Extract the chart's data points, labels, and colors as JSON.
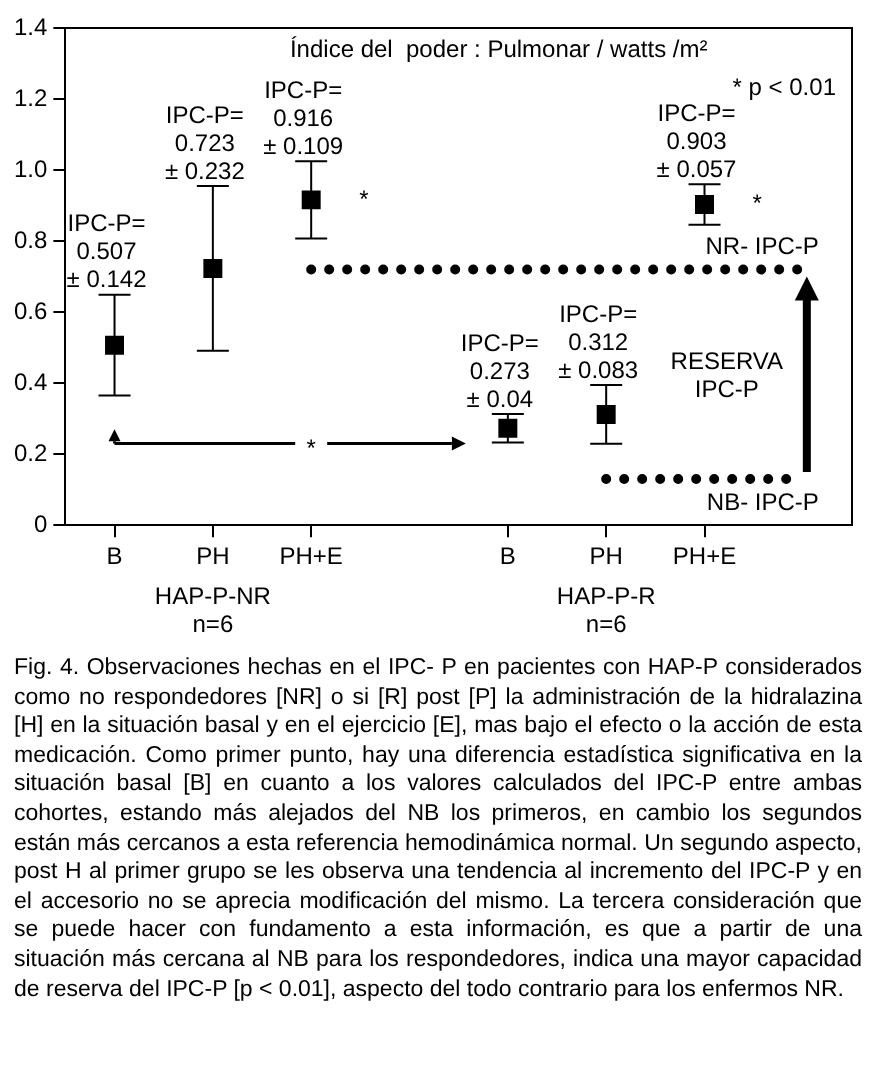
{
  "chart_data": {
    "type": "scatter",
    "title": "Índice del  poder : Pulmonar / watts /m²",
    "categories": [
      "B",
      "PH",
      "PH+E",
      null,
      "B",
      "PH",
      "PH+E",
      null
    ],
    "ylim": [
      0,
      1.4
    ],
    "yticks": [
      0,
      0.2,
      0.4,
      0.6,
      0.8,
      {
        "value": 1,
        "label": "1.0"
      },
      1.2,
      1.4
    ],
    "grid": false,
    "legend": false,
    "series": [
      {
        "color": "#000000",
        "marker": "square",
        "values": [
          0.507,
          0.723,
          0.916,
          null,
          0.273,
          0.312,
          0.903,
          null
        ],
        "errors": [
          0.142,
          0.232,
          0.109,
          null,
          0.04,
          0.083,
          0.057,
          null
        ],
        "value_labels": [
          "IPC-P=\n0.507\n± 0.142",
          "IPC-P=\n0.723\n± 0.232",
          "IPC-P=\n0.916\n± 0.109",
          null,
          "IPC-P=\n0.273\n± 0.04",
          "IPC-P=\n0.312\n± 0.083",
          "IPC-P=\n0.903\n± 0.057",
          null
        ]
      },
      {
        "type": "line",
        "name": "NR- IPC-P",
        "color": "#000000",
        "line_style": "dotted",
        "values": [
          null,
          null,
          0.72,
          0.72,
          0.72,
          0.72,
          0.72,
          0.72
        ]
      },
      {
        "type": "line",
        "name": "NB- IPC-P",
        "color": "#000000",
        "line_style": "dotted",
        "values": [
          null,
          null,
          null,
          null,
          null,
          0.13,
          0.13,
          0.13
        ]
      }
    ],
    "annotations": [
      "* p < 0.01",
      "*",
      "*",
      "*",
      "RESERVA\nIPC-P",
      "HAP-P-NR\nn=6",
      "HAP-P-R\nn=6",
      "Fig. 4. Observaciones hechas en el IPC- P en pacientes con HAP-P considerados como no respondedores [NR] o si [R] post [P] la administración de la hidralazina [H] en la situación basal y en el ejercicio [E], mas bajo el efecto o la acción de esta medicación. Como primer punto, hay una diferencia estadística significativa en la situación basal [B] en cuanto a los valores calculados del IPC-P entre ambas cohortes, estando más alejados del NB los primeros, en cambio los segundos están más cercanos a esta referencia hemodinámica normal. Un segundo aspecto, post H al primer grupo se les observa una tendencia al incremento del IPC-P y en el accesorio no se aprecia modificación del mismo. La tercera consideración que se puede hacer con fundamento a esta información, es que a partir de una situación más cercana al NB para los respondedores, indica una mayor capacidad de reserva del IPC-P [p < 0.01], aspecto del todo contrario para los enfermos NR."
    ]
  }
}
